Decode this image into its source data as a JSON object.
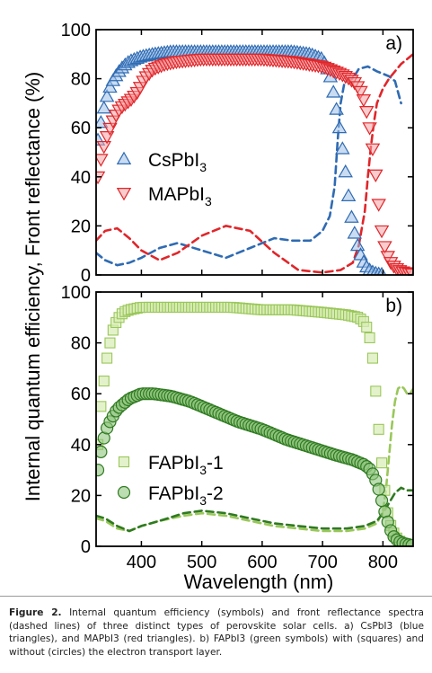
{
  "figure": {
    "ylabel": "Internal quantum efficiency, Front reflectance (%)",
    "xlabel": "Wavelength (nm)"
  },
  "caption": {
    "lead": "Figure 2.",
    "text": "Internal quantum efficiency (symbols) and front reflectance spectra (dashed lines) of three distinct types of perovskite solar cells. a) CsPbI3 (blue triangles), and MAPbI3 (red triangles). b) FAPbI3 (green symbols) with (squares) and without (circles) the electron transport layer."
  },
  "colors": {
    "blue": "#2f6bb3",
    "blue_fill": "#9ec0e6",
    "red": "#e0262a",
    "red_fill": "#f5a3a4",
    "light_green": "#9ac75a",
    "light_green_fill": "#d9ecb6",
    "dark_green": "#2f7a21",
    "dark_green_fill": "#8fc57d"
  },
  "chart_data": [
    {
      "type": "scatter",
      "panel_label": "a)",
      "xlim": [
        325,
        850
      ],
      "ylim": [
        0,
        100
      ],
      "x_ticks": [
        400,
        500,
        600,
        700,
        800
      ],
      "y_ticks": [
        0,
        20,
        40,
        60,
        80,
        100
      ],
      "legend": [
        "CsPbI3",
        "MAPbI3"
      ],
      "legend_position": "center-left",
      "series": [
        {
          "name": "CsPbI3",
          "kind": "IQE",
          "marker": "triangle-up",
          "color": "blue",
          "x": [
            328,
            335,
            342,
            350,
            360,
            370,
            380,
            390,
            400,
            420,
            450,
            500,
            550,
            600,
            650,
            680,
            700,
            712,
            720,
            728,
            735,
            742,
            750,
            760,
            770,
            780,
            790,
            800
          ],
          "y": [
            55,
            65,
            72,
            78,
            82,
            85,
            87,
            88,
            89,
            90,
            91,
            91,
            91,
            91,
            91,
            90,
            88,
            82,
            72,
            60,
            48,
            34,
            20,
            10,
            4,
            1.5,
            0.5,
            0.2
          ]
        },
        {
          "name": "MAPbI3",
          "kind": "IQE",
          "marker": "triangle-down",
          "color": "red",
          "x": [
            328,
            335,
            345,
            355,
            365,
            375,
            385,
            395,
            405,
            420,
            440,
            460,
            500,
            550,
            600,
            650,
            700,
            730,
            745,
            755,
            765,
            772,
            778,
            785,
            790,
            795,
            800,
            810,
            820,
            830,
            840,
            848
          ],
          "y": [
            40,
            50,
            58,
            64,
            68,
            70,
            72,
            75,
            80,
            84,
            86,
            87,
            88,
            88,
            88,
            87,
            85,
            82,
            80,
            78,
            74,
            68,
            60,
            48,
            36,
            24,
            14,
            6,
            3,
            1.5,
            0.8,
            0.5
          ]
        },
        {
          "name": "",
          "kind": "reflectance",
          "line": "dashed",
          "color": "blue",
          "x": [
            325,
            340,
            360,
            380,
            400,
            430,
            460,
            500,
            540,
            580,
            620,
            650,
            680,
            700,
            712,
            720,
            725,
            730,
            736,
            742,
            750,
            760,
            775,
            790,
            800,
            810,
            820,
            830
          ],
          "y": [
            9,
            6,
            4,
            5,
            7,
            11,
            13,
            10,
            7,
            11,
            15,
            14,
            14,
            18,
            24,
            36,
            55,
            70,
            78,
            80,
            80,
            84,
            85,
            83,
            82,
            81,
            79,
            70
          ]
        },
        {
          "name": "",
          "kind": "reflectance",
          "line": "dashed",
          "color": "red",
          "x": [
            325,
            340,
            360,
            380,
            400,
            430,
            460,
            500,
            540,
            580,
            620,
            660,
            700,
            730,
            750,
            760,
            770,
            775,
            780,
            785,
            790,
            800,
            810,
            820,
            830,
            840,
            850
          ],
          "y": [
            14,
            18,
            19,
            15,
            10,
            6,
            9,
            16,
            20,
            18,
            9,
            2,
            1,
            2,
            5,
            12,
            26,
            40,
            52,
            62,
            70,
            76,
            80,
            83,
            86,
            88,
            90
          ]
        }
      ]
    },
    {
      "type": "scatter",
      "panel_label": "b)",
      "xlim": [
        325,
        850
      ],
      "ylim": [
        0,
        100
      ],
      "x_ticks": [
        400,
        500,
        600,
        700,
        800
      ],
      "y_ticks": [
        0,
        20,
        40,
        60,
        80,
        100
      ],
      "legend": [
        "FAPbI3-1",
        "FAPbI3-2"
      ],
      "legend_position": "bottom-center",
      "series": [
        {
          "name": "FAPbI3-1",
          "kind": "IQE",
          "marker": "square",
          "color": "light_green",
          "x": [
            328,
            333,
            338,
            343,
            348,
            353,
            358,
            363,
            370,
            380,
            400,
            450,
            500,
            550,
            600,
            650,
            700,
            740,
            760,
            770,
            775,
            780,
            785,
            790,
            795,
            800,
            805,
            810,
            820,
            830,
            840,
            848
          ],
          "y": [
            40,
            55,
            65,
            74,
            80,
            85,
            88,
            90,
            92,
            93,
            94,
            94,
            94,
            94,
            93,
            93,
            92,
            91,
            90,
            88,
            85,
            80,
            70,
            55,
            40,
            28,
            18,
            10,
            4,
            1.5,
            0.5,
            0.2
          ],
          "sample_every": 1
        },
        {
          "name": "FAPbI3-2",
          "kind": "IQE",
          "marker": "circle",
          "color": "dark_green",
          "x": [
            328,
            335,
            342,
            350,
            360,
            370,
            380,
            390,
            400,
            420,
            450,
            480,
            500,
            530,
            560,
            600,
            640,
            680,
            720,
            750,
            770,
            780,
            788,
            795,
            800,
            805,
            810,
            815,
            820,
            830,
            840,
            848
          ],
          "y": [
            30,
            40,
            46,
            50,
            54,
            56,
            58,
            59,
            60,
            60,
            59,
            57,
            55,
            52,
            49,
            46,
            42,
            39,
            36,
            34,
            32,
            30,
            26,
            21,
            16,
            12,
            8,
            5,
            3,
            1.5,
            0.8,
            0.4
          ]
        },
        {
          "name": "",
          "kind": "reflectance",
          "line": "dashed",
          "color": "light_green",
          "x": [
            325,
            340,
            360,
            380,
            400,
            430,
            470,
            500,
            540,
            580,
            620,
            660,
            700,
            740,
            770,
            790,
            800,
            805,
            810,
            815,
            820,
            825,
            830,
            835,
            840,
            845,
            850
          ],
          "y": [
            11,
            10,
            7,
            6,
            8,
            10,
            12,
            13,
            12,
            10,
            8,
            7,
            6,
            6,
            7,
            9,
            14,
            22,
            35,
            48,
            57,
            62,
            63,
            62,
            60,
            60,
            62
          ]
        },
        {
          "name": "",
          "kind": "reflectance",
          "line": "dashed",
          "color": "dark_green",
          "x": [
            325,
            340,
            360,
            380,
            400,
            430,
            470,
            500,
            540,
            580,
            620,
            660,
            700,
            740,
            770,
            790,
            800,
            810,
            820,
            830,
            840,
            850
          ],
          "y": [
            12,
            11,
            8,
            6,
            8,
            10,
            13,
            14,
            13,
            11,
            9,
            8,
            7,
            7,
            8,
            10,
            13,
            17,
            21,
            23,
            22,
            22
          ]
        }
      ]
    }
  ]
}
